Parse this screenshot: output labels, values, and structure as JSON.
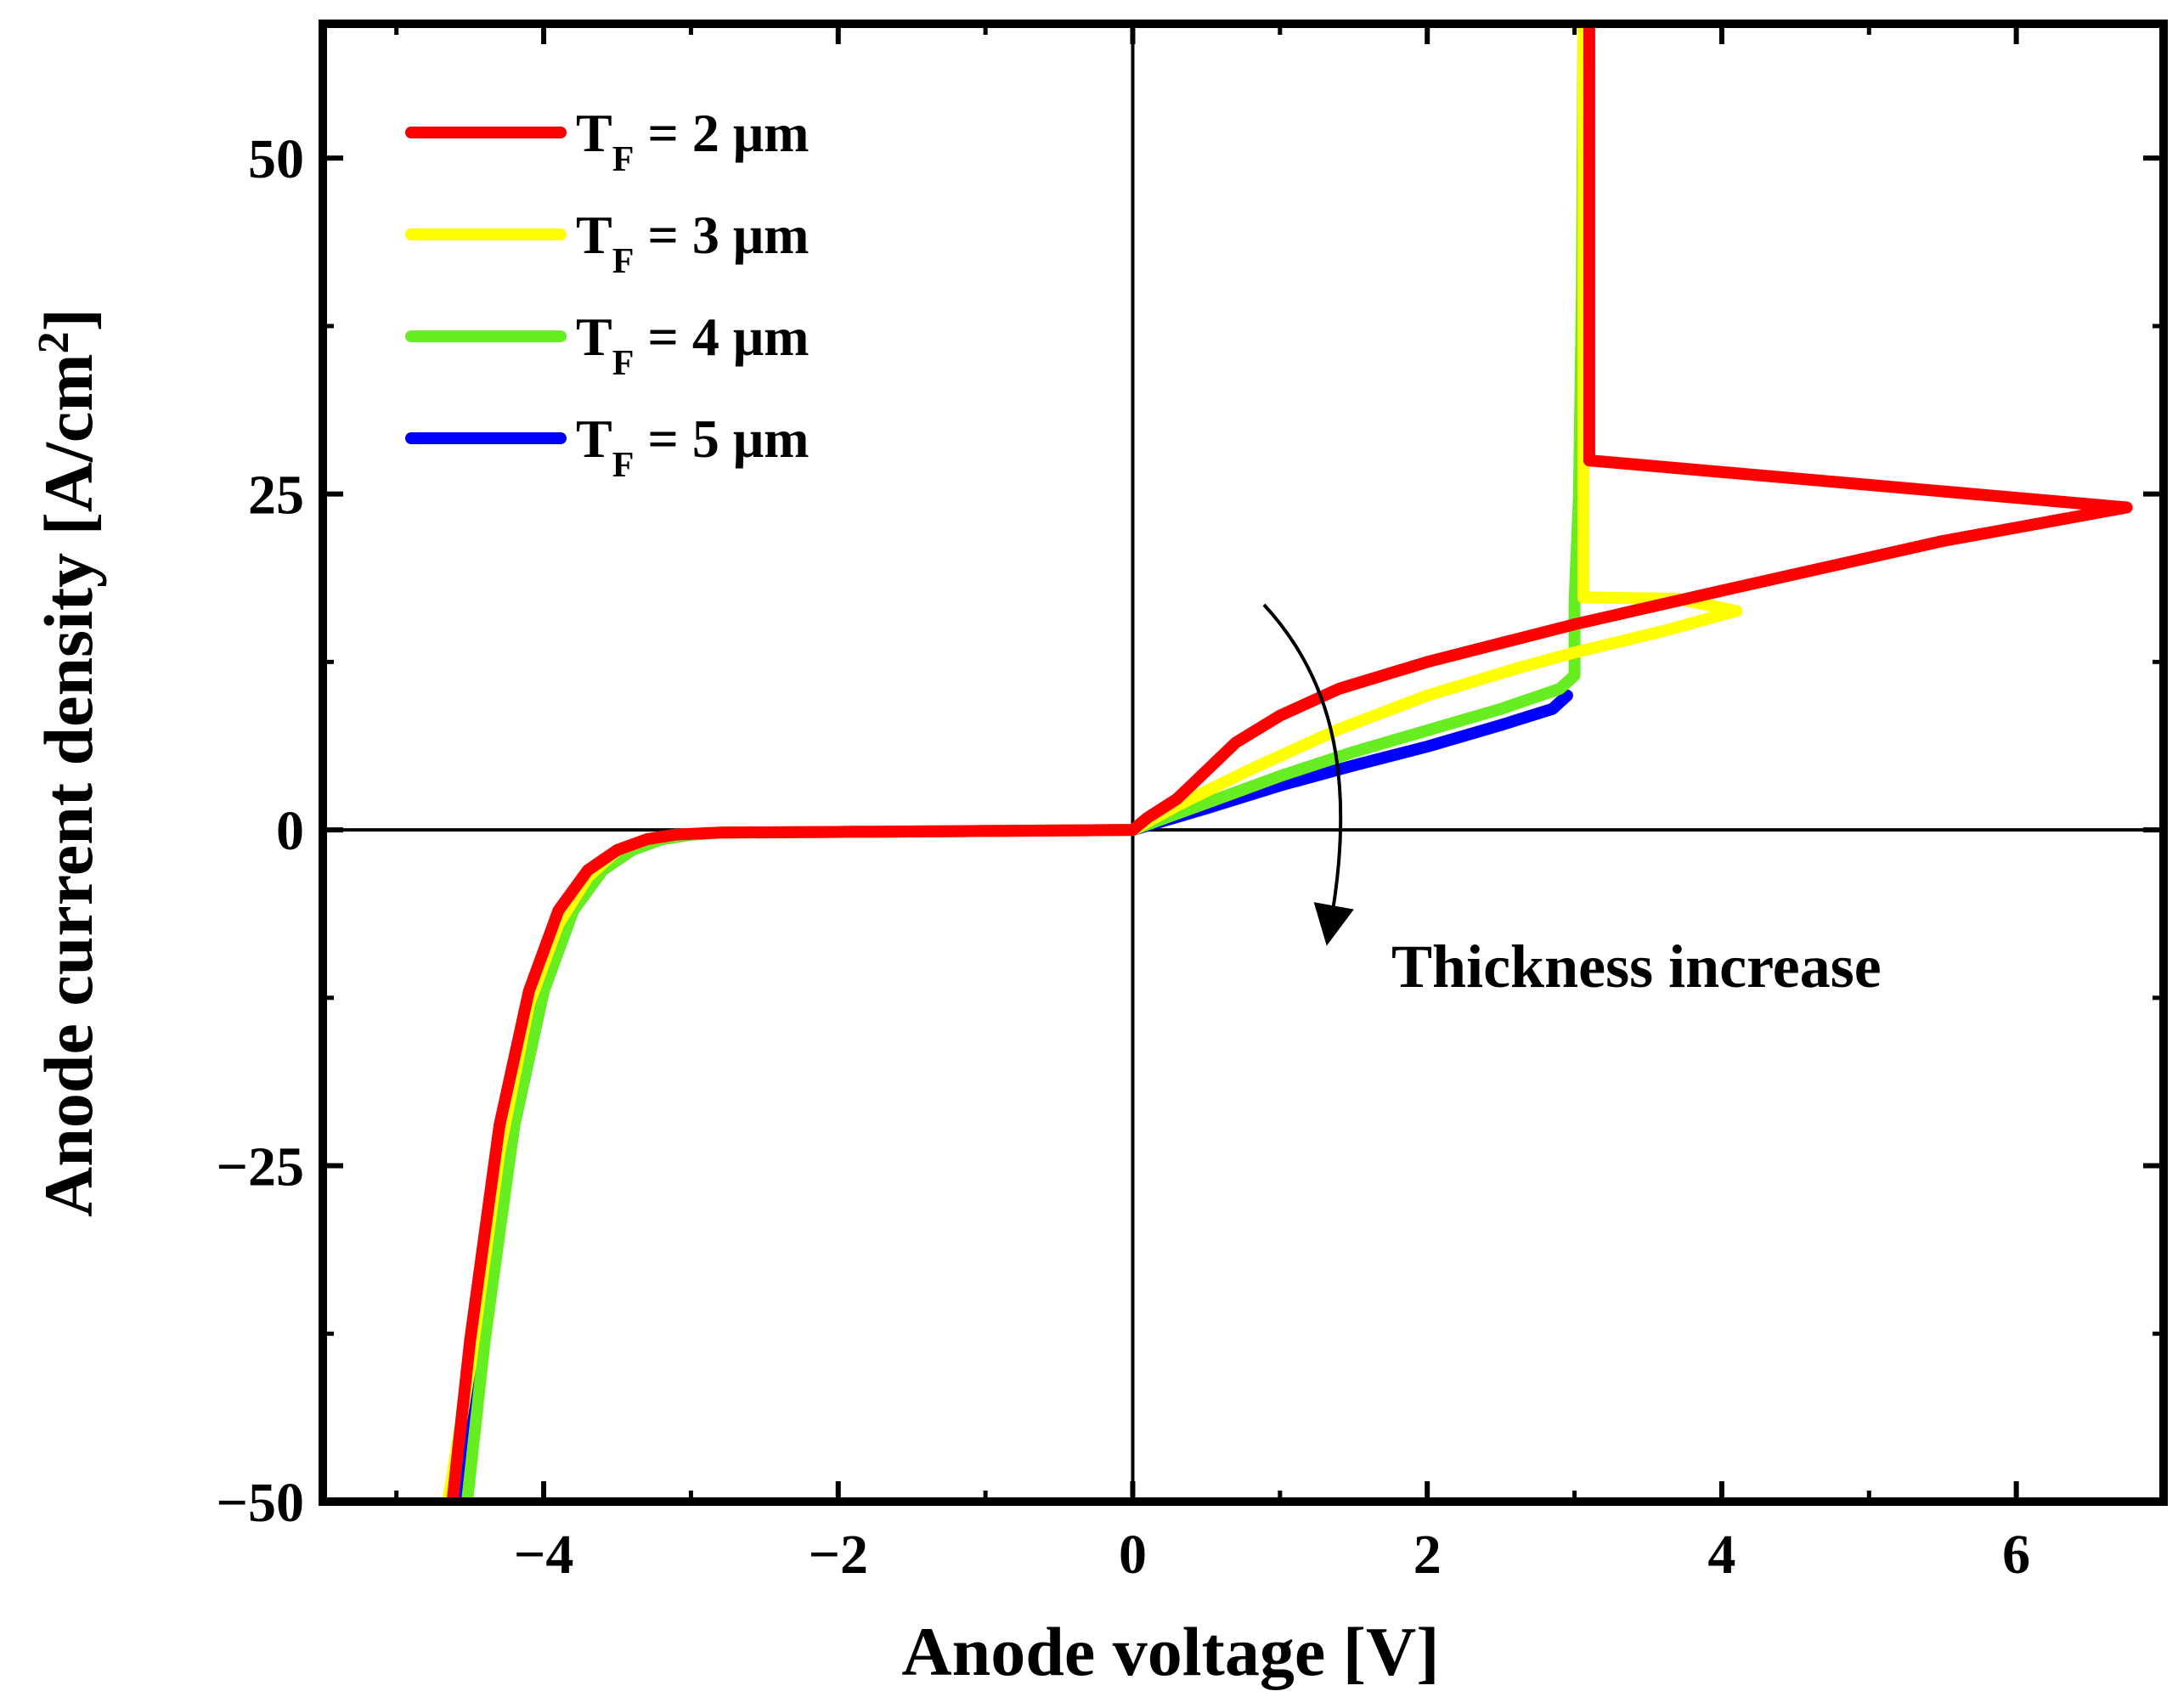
{
  "chart_data": {
    "type": "line",
    "xlabel": "Anode voltage [V]",
    "ylabel": {
      "main": "Anode current density [A/cm",
      "sup": "2",
      "close": "]"
    },
    "xlim": [
      -5.5,
      7.0
    ],
    "ylim": [
      -50,
      60
    ],
    "x_ticks": [
      -4,
      -2,
      0,
      2,
      4,
      6
    ],
    "x_tick_labels": [
      "−4",
      "−2",
      "0",
      "2",
      "4",
      "6"
    ],
    "y_ticks": [
      -50,
      -25,
      0,
      25,
      50
    ],
    "y_tick_labels": [
      "−50",
      "−25",
      "0",
      "25",
      "50"
    ],
    "grid": false,
    "legend_position": "top-left",
    "annotation": "Thickness increase",
    "series": [
      {
        "name": "T_F = 2 μm",
        "legend": {
          "main": "T",
          "sub": "F",
          "rest": " = 2 μm"
        },
        "color": "#ff0000",
        "points": [
          [
            -4.62,
            -50
          ],
          [
            -4.5,
            -38
          ],
          [
            -4.3,
            -22
          ],
          [
            -4.1,
            -12
          ],
          [
            -3.9,
            -6
          ],
          [
            -3.7,
            -3
          ],
          [
            -3.5,
            -1.5
          ],
          [
            -3.3,
            -0.7
          ],
          [
            -3.1,
            -0.35
          ],
          [
            -2.8,
            -0.2
          ],
          [
            -2,
            -0.15
          ],
          [
            -1,
            -0.08
          ],
          [
            0,
            0
          ],
          [
            0.1,
            0.9
          ],
          [
            0.3,
            2.3
          ],
          [
            0.7,
            6.5
          ],
          [
            1.0,
            8.5
          ],
          [
            1.4,
            10.5
          ],
          [
            2.0,
            12.5
          ],
          [
            3.0,
            15.3
          ],
          [
            4.0,
            17.8
          ],
          [
            5.5,
            21.5
          ],
          [
            6.75,
            24
          ],
          [
            3.1,
            27.5
          ],
          [
            3.1,
            60
          ]
        ]
      },
      {
        "name": "T_F = 3 μm",
        "legend": {
          "main": "T",
          "sub": "F",
          "rest": " = 3 μm"
        },
        "color": "#ffff00",
        "points": [
          [
            -4.65,
            -50
          ],
          [
            -4.5,
            -40
          ],
          [
            -4.3,
            -24
          ],
          [
            -4.1,
            -13
          ],
          [
            -3.9,
            -7
          ],
          [
            -3.7,
            -3.5
          ],
          [
            -3.5,
            -1.5
          ],
          [
            -3.3,
            -0.7
          ],
          [
            -3.1,
            -0.35
          ],
          [
            -2.8,
            -0.2
          ],
          [
            -2,
            -0.15
          ],
          [
            -1,
            -0.08
          ],
          [
            0,
            0
          ],
          [
            0.3,
            1.8
          ],
          [
            0.8,
            4.5
          ],
          [
            1.4,
            7.5
          ],
          [
            2.0,
            10
          ],
          [
            2.6,
            12
          ],
          [
            3.0,
            13.2
          ],
          [
            3.6,
            14.8
          ],
          [
            4.1,
            16.3
          ],
          [
            3.7,
            17.2
          ],
          [
            3.06,
            17.3
          ],
          [
            3.06,
            60
          ]
        ]
      },
      {
        "name": "T_F = 4 μm",
        "legend": {
          "main": "T",
          "sub": "F",
          "rest": " = 4 μm"
        },
        "color": "#66ee22",
        "points": [
          [
            -4.52,
            -50
          ],
          [
            -4.4,
            -38
          ],
          [
            -4.2,
            -22
          ],
          [
            -4.0,
            -12
          ],
          [
            -3.8,
            -6
          ],
          [
            -3.6,
            -3
          ],
          [
            -3.4,
            -1.5
          ],
          [
            -3.2,
            -0.7
          ],
          [
            -3.0,
            -0.35
          ],
          [
            -2.8,
            -0.2
          ],
          [
            -2,
            -0.15
          ],
          [
            -1,
            -0.08
          ],
          [
            0,
            0
          ],
          [
            0.5,
            2
          ],
          [
            1.0,
            4
          ],
          [
            1.5,
            5.8
          ],
          [
            2.0,
            7.4
          ],
          [
            2.5,
            9
          ],
          [
            2.9,
            10.5
          ],
          [
            3.0,
            11.5
          ],
          [
            3.0,
            17
          ],
          [
            3.03,
            25
          ],
          [
            3.05,
            40
          ],
          [
            3.06,
            60
          ]
        ]
      },
      {
        "name": "T_F = 5 μm",
        "legend": {
          "main": "T",
          "sub": "F",
          "rest": " = 5 μm"
        },
        "color": "#0000ff",
        "points": [
          [
            -4.55,
            -50
          ],
          [
            -4.4,
            -37
          ],
          [
            -4.2,
            -22
          ],
          [
            -4.0,
            -12
          ],
          [
            -3.8,
            -6
          ],
          [
            -3.6,
            -3
          ],
          [
            -3.4,
            -1.5
          ],
          [
            -3.2,
            -0.7
          ],
          [
            -3.0,
            -0.35
          ],
          [
            -2.8,
            -0.2
          ],
          [
            -2,
            -0.15
          ],
          [
            -1,
            -0.08
          ],
          [
            0,
            0
          ],
          [
            0.5,
            1.6
          ],
          [
            1.0,
            3.3
          ],
          [
            1.5,
            4.8
          ],
          [
            2.0,
            6.2
          ],
          [
            2.5,
            7.8
          ],
          [
            2.85,
            9
          ],
          [
            2.95,
            10
          ]
        ]
      }
    ]
  }
}
